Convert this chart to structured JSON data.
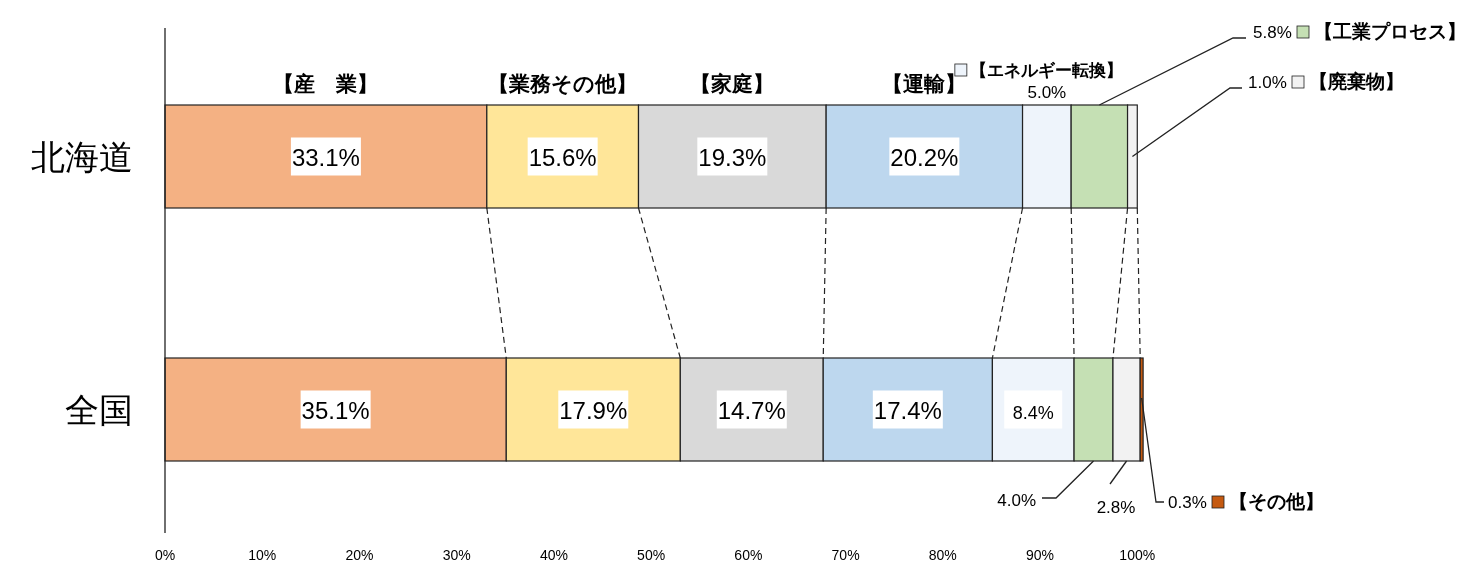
{
  "chart_data": {
    "type": "bar",
    "orientation": "horizontal",
    "stacked": true,
    "categories": [
      "北海道",
      "全国"
    ],
    "xlim": [
      0,
      101
    ],
    "xticks": [
      {
        "value": 0,
        "label": "0%"
      },
      {
        "value": 10,
        "label": "10%"
      },
      {
        "value": 20,
        "label": "20%"
      },
      {
        "value": 30,
        "label": "30%"
      },
      {
        "value": 40,
        "label": "40%"
      },
      {
        "value": 50,
        "label": "50%"
      },
      {
        "value": 60,
        "label": "60%"
      },
      {
        "value": 70,
        "label": "70%"
      },
      {
        "value": 80,
        "label": "80%"
      },
      {
        "value": 90,
        "label": "90%"
      },
      {
        "value": 100,
        "label": "100%"
      }
    ],
    "grid": false,
    "legend": "right",
    "series": [
      {
        "name": "【産　業】",
        "color": "#f4b183",
        "values": [
          33.1,
          35.1
        ],
        "value_labels": [
          "33.1%",
          "35.1%"
        ]
      },
      {
        "name": "【業務その他】",
        "color": "#ffe699",
        "values": [
          15.6,
          17.9
        ],
        "value_labels": [
          "15.6%",
          "17.9%"
        ]
      },
      {
        "name": "【家庭】",
        "color": "#d9d9d9",
        "values": [
          19.3,
          14.7
        ],
        "value_labels": [
          "19.3%",
          "14.7%"
        ]
      },
      {
        "name": "【運輸】",
        "color": "#bdd7ee",
        "values": [
          20.2,
          17.4
        ],
        "value_labels": [
          "20.2%",
          "17.4%"
        ]
      },
      {
        "name": "【エネルギー転換】",
        "color": "#eef4fb",
        "values": [
          5.0,
          8.4
        ],
        "value_labels": [
          "5.0%",
          "8.4%"
        ]
      },
      {
        "name": "【工業プロセス】",
        "color": "#c5e0b4",
        "values": [
          5.8,
          4.0
        ],
        "value_labels": [
          "5.8%",
          "4.0%"
        ]
      },
      {
        "name": "【廃棄物】",
        "color": "#f2f2f2",
        "values": [
          1.0,
          2.8
        ],
        "value_labels": [
          "1.0%",
          "2.8%"
        ]
      },
      {
        "name": "【その他】",
        "color": "#c55a11",
        "values": [
          null,
          0.3
        ],
        "value_labels": [
          null,
          "0.3%"
        ]
      }
    ]
  }
}
